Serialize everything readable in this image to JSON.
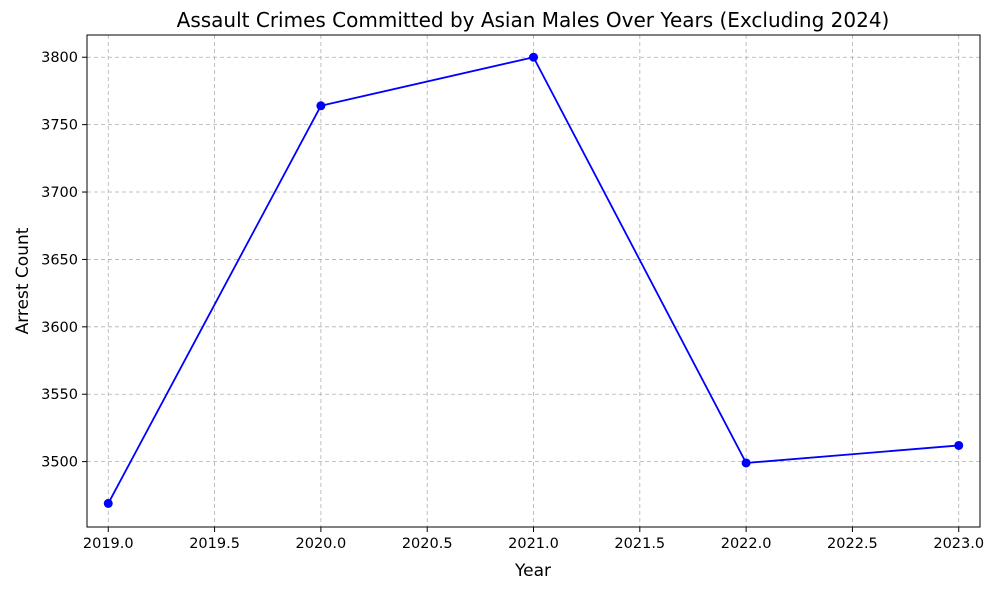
{
  "chart_data": {
    "type": "line",
    "title": "Assault Crimes Committed by Asian Males Over Years (Excluding 2024)",
    "xlabel": "Year",
    "ylabel": "Arrest Count",
    "x": [
      2019,
      2020,
      2021,
      2022,
      2023
    ],
    "series": [
      {
        "values": [
          3469,
          3764,
          3800,
          3499,
          3512
        ],
        "color": "#0000ff",
        "marker": "circle"
      }
    ],
    "xlim": [
      2018.9,
      2023.1
    ],
    "ylim": [
      3451.5,
      3816.5
    ],
    "x_ticks": [
      "2019.0",
      "2019.5",
      "2020.0",
      "2020.5",
      "2021.0",
      "2021.5",
      "2022.0",
      "2022.5",
      "2023.0"
    ],
    "y_ticks": [
      "3500",
      "3550",
      "3600",
      "3650",
      "3700",
      "3750",
      "3800"
    ],
    "grid": true,
    "grid_style": "dashed",
    "legend": "none"
  }
}
